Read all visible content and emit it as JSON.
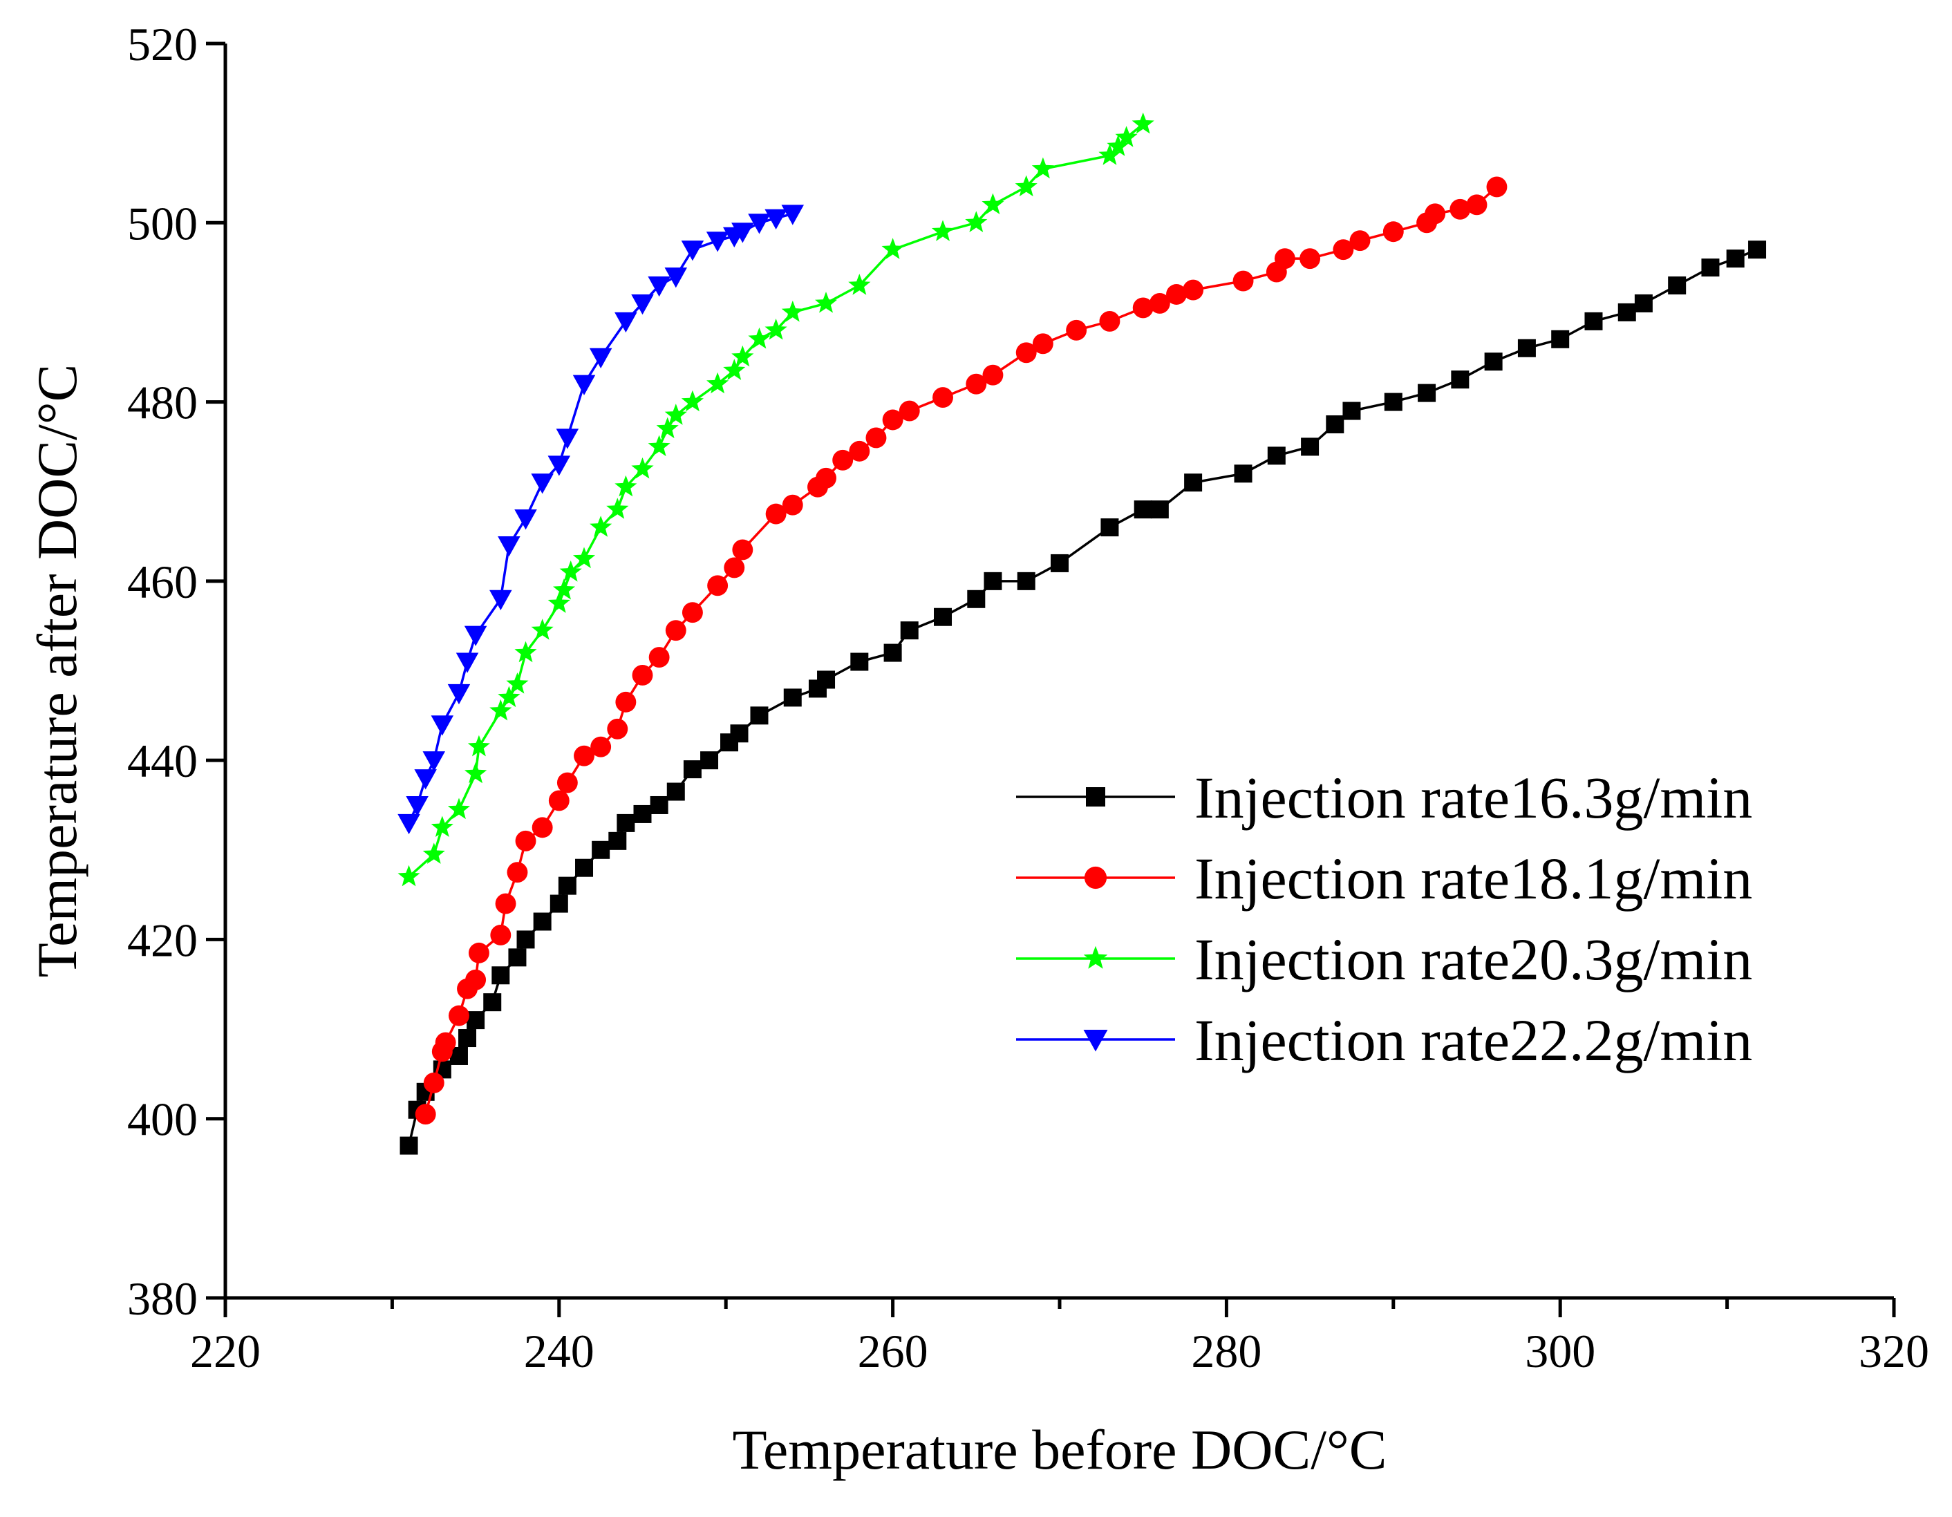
{
  "chart_data": {
    "type": "line",
    "title": "",
    "xlabel": "Temperature before DOC/°C",
    "ylabel": "Temperature after DOC/°C",
    "xlim": [
      220,
      320
    ],
    "ylim": [
      380,
      520
    ],
    "xticks": [
      220,
      240,
      260,
      280,
      300,
      320
    ],
    "yticks": [
      380,
      400,
      420,
      440,
      460,
      480,
      500,
      520
    ],
    "x_minor_step": 10,
    "grid": false,
    "legend_position": "lower-right",
    "series": [
      {
        "name": "Injection rate16.3g/min",
        "color": "#000000",
        "marker": "square",
        "x": [
          231,
          231.5,
          232,
          233,
          234,
          234.5,
          235,
          236,
          236.5,
          237.5,
          238,
          239,
          240,
          240.5,
          241.5,
          242.5,
          243.5,
          244,
          245,
          246,
          247,
          248,
          249,
          250.2,
          250.8,
          252,
          254,
          255.5,
          256,
          258,
          260,
          261,
          263,
          265,
          266,
          268,
          270,
          273,
          275,
          276,
          278,
          281,
          283,
          285,
          286.5,
          287.5,
          290,
          292,
          294,
          296,
          298,
          300,
          302,
          304,
          305,
          307,
          309,
          310.5,
          311.8
        ],
        "y": [
          397,
          401,
          403,
          405.5,
          407,
          409,
          411,
          413,
          416,
          418,
          420,
          422,
          424,
          426,
          428,
          430,
          431,
          433,
          434,
          435,
          436.5,
          439,
          440,
          442,
          443,
          445,
          447,
          448,
          449,
          451,
          452,
          454.5,
          456,
          458,
          460,
          460,
          462,
          466,
          468,
          468,
          471,
          472,
          474,
          475,
          477.5,
          479,
          480,
          481,
          482.5,
          484.5,
          486,
          487,
          489,
          490,
          491,
          493,
          495,
          496,
          497
        ]
      },
      {
        "name": "Injection rate18.1g/min",
        "color": "#ff0000",
        "marker": "circle",
        "x": [
          232,
          232.5,
          233,
          233.2,
          234,
          234.5,
          235,
          235.2,
          236.5,
          236.8,
          237.5,
          238,
          239,
          240,
          240.5,
          241.5,
          242.5,
          243.5,
          244,
          245,
          246,
          247,
          248,
          249.5,
          250.5,
          251,
          253,
          254,
          255.5,
          256,
          257,
          258,
          259,
          260,
          261,
          263,
          265,
          266,
          268,
          269,
          271,
          273,
          275,
          276,
          277,
          278,
          281,
          283,
          283.5,
          285,
          287,
          288,
          290,
          292,
          292.5,
          294,
          295,
          296.2
        ],
        "y": [
          400.5,
          404,
          407.5,
          408.5,
          411.5,
          414.5,
          415.5,
          418.5,
          420.5,
          424,
          427.5,
          431,
          432.5,
          435.5,
          437.5,
          440.5,
          441.5,
          443.5,
          446.5,
          449.5,
          451.5,
          454.5,
          456.5,
          459.5,
          461.5,
          463.5,
          467.5,
          468.5,
          470.5,
          471.5,
          473.5,
          474.5,
          476,
          478,
          479,
          480.5,
          482,
          483,
          485.5,
          486.5,
          488,
          489,
          490.5,
          491,
          492,
          492.5,
          493.5,
          494.5,
          496,
          496,
          497,
          498,
          499,
          500,
          501,
          501.5,
          502,
          504
        ]
      },
      {
        "name": "Injection rate20.3g/min",
        "color": "#00ff00",
        "marker": "star",
        "x": [
          231,
          232.5,
          233,
          234,
          235,
          235.2,
          236.5,
          237,
          237.5,
          238,
          239,
          240,
          240.3,
          240.7,
          241.5,
          242.5,
          243.5,
          244,
          245,
          246,
          246.5,
          247,
          248,
          249.5,
          250.5,
          251,
          252,
          253,
          254,
          256,
          258,
          260,
          263,
          265,
          266,
          268,
          269,
          273,
          273.5,
          274,
          275
        ],
        "y": [
          427,
          429.5,
          432.5,
          434.5,
          438.5,
          441.5,
          445.5,
          447,
          448.5,
          452,
          454.5,
          457.5,
          459,
          461,
          462.5,
          466,
          468,
          470.5,
          472.5,
          475,
          477,
          478.5,
          480,
          482,
          483.5,
          485,
          487,
          488,
          490,
          491,
          493,
          497,
          499,
          500,
          502,
          504,
          506,
          507.5,
          508.5,
          509.5,
          511
        ]
      },
      {
        "name": "Injection rate22.2g/min",
        "color": "#0000ff",
        "marker": "triangle-down",
        "x": [
          231,
          231.5,
          232,
          232.5,
          233,
          234,
          234.5,
          235,
          236.5,
          237,
          238,
          239,
          240,
          240.5,
          241.5,
          242.5,
          244,
          245,
          246,
          247,
          248,
          249.5,
          250.5,
          251,
          252,
          253,
          254
        ],
        "y": [
          433,
          435,
          438,
          440,
          444,
          447.5,
          451,
          454,
          458,
          464,
          467,
          471,
          473,
          476,
          482,
          485,
          489,
          491,
          493,
          494,
          497,
          498,
          498.5,
          499,
          500,
          500.5,
          501
        ]
      }
    ]
  }
}
